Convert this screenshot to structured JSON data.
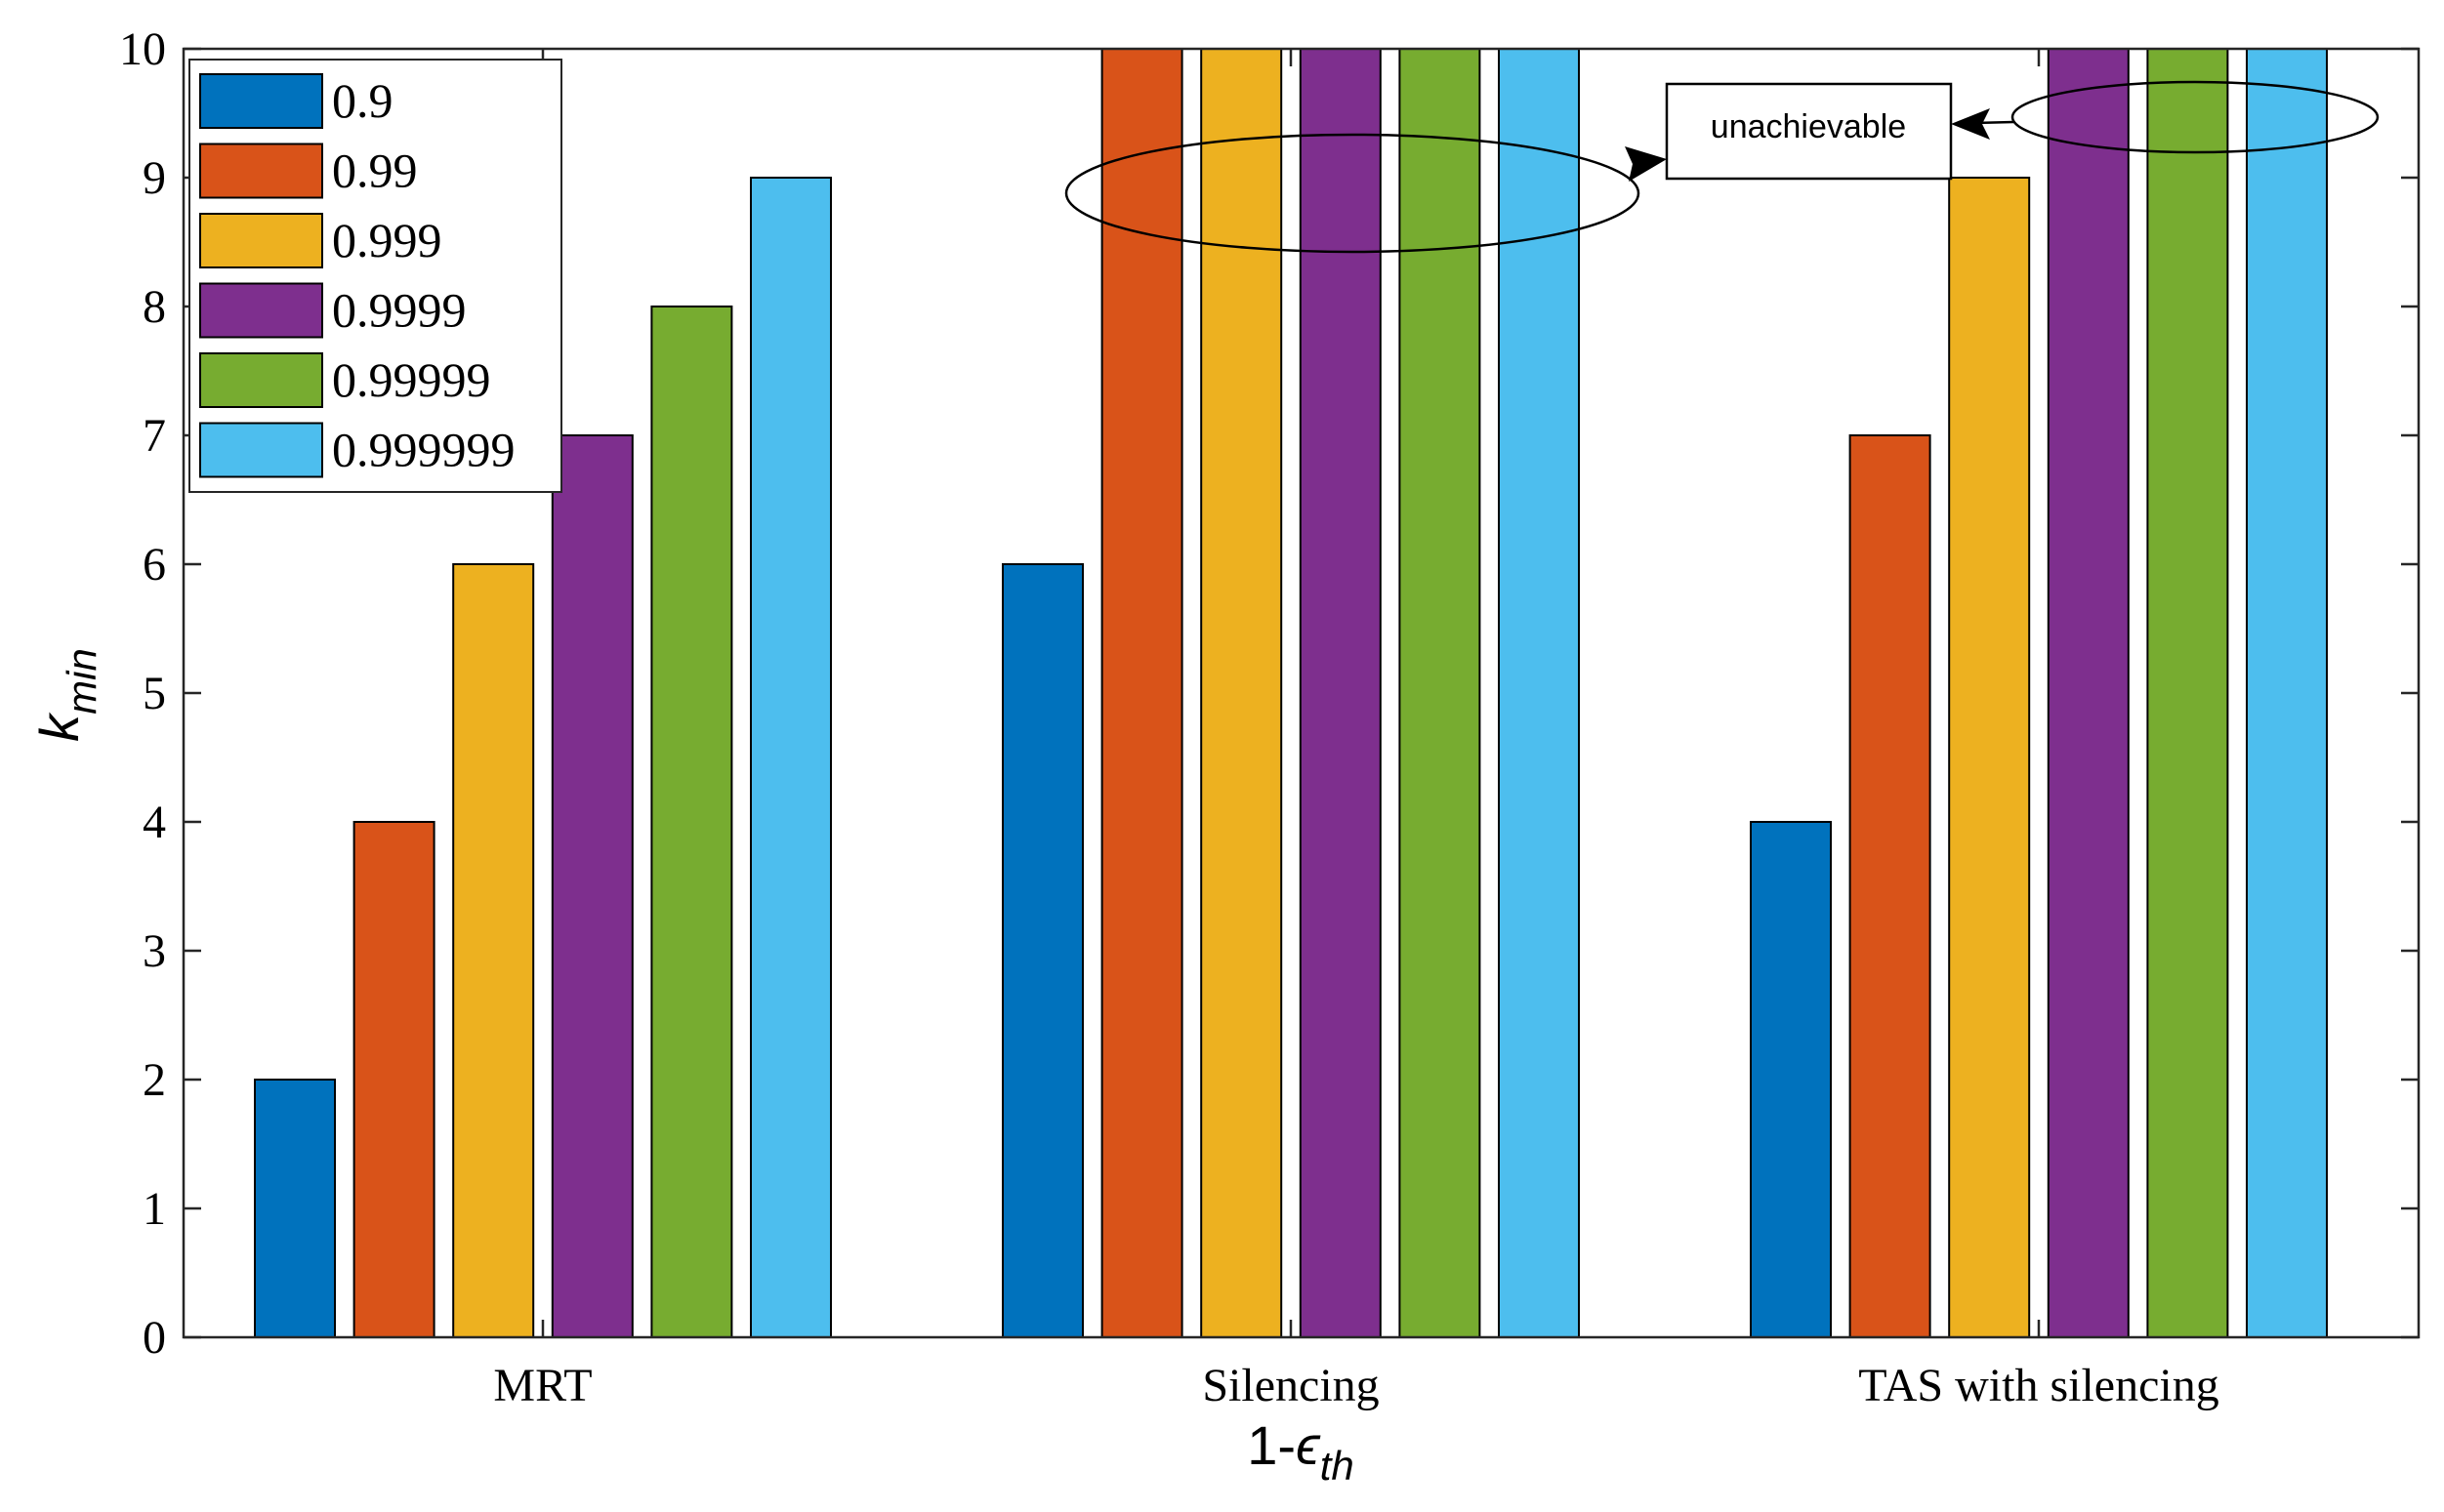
{
  "chart_data": {
    "type": "bar",
    "title": "",
    "categories": [
      "MRT",
      "Silencing",
      "TAS with silencing"
    ],
    "xlabel": {
      "main": "1-",
      "symbol": "ϵ",
      "subscript": "th"
    },
    "ylabel": {
      "main": "k",
      "subscript": "min"
    },
    "ylim": [
      0,
      10
    ],
    "yticks": [
      "0",
      "1",
      "2",
      "3",
      "4",
      "5",
      "6",
      "7",
      "8",
      "9",
      "10"
    ],
    "series": [
      {
        "name": "0.9",
        "color": "#0072BD",
        "values": [
          2,
          6,
          4
        ]
      },
      {
        "name": "0.99",
        "color": "#D95319",
        "values": [
          4,
          10,
          7
        ]
      },
      {
        "name": "0.999",
        "color": "#EDB120",
        "values": [
          6,
          10,
          9
        ]
      },
      {
        "name": "0.9999",
        "color": "#7E2F8E",
        "values": [
          7,
          10,
          10
        ]
      },
      {
        "name": "0.99999",
        "color": "#77AC30",
        "values": [
          8,
          10,
          10
        ]
      },
      {
        "name": "0.999999",
        "color": "#4DBEEE",
        "values": [
          9,
          10,
          10
        ]
      }
    ],
    "legend_position": "top-left",
    "annotation": {
      "text": "unachievable"
    }
  }
}
